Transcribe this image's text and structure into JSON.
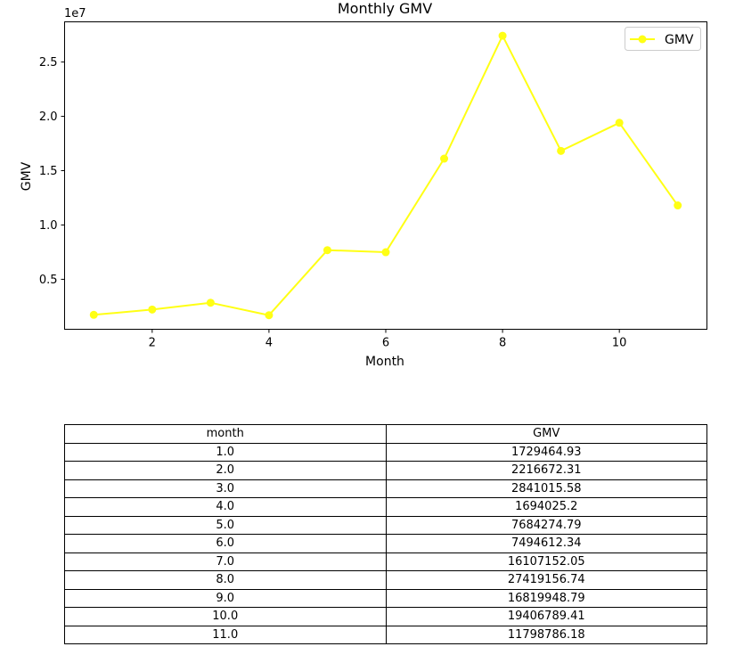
{
  "chart_data": {
    "type": "line",
    "title": "Monthly GMV",
    "xlabel": "Month",
    "ylabel": "GMV",
    "offset_label": "1e7",
    "x": [
      1,
      2,
      3,
      4,
      5,
      6,
      7,
      8,
      9,
      10,
      11
    ],
    "series": [
      {
        "name": "GMV",
        "color": "#ffff14",
        "marker": "circle",
        "values": [
          1729464.93,
          2216672.31,
          2841015.58,
          1694025.2,
          7684274.79,
          7494612.34,
          16107152.05,
          27419156.74,
          16819948.79,
          19406789.41,
          11798786.18
        ]
      }
    ],
    "xlim": [
      0.5,
      11.5
    ],
    "ylim": [
      400000,
      28700000
    ],
    "xticks": [
      2,
      4,
      6,
      8,
      10
    ],
    "xtick_labels": [
      "2",
      "4",
      "6",
      "8",
      "10"
    ],
    "yticks": [
      5000000,
      10000000,
      15000000,
      20000000,
      25000000
    ],
    "ytick_labels": [
      "0.5",
      "1.0",
      "1.5",
      "2.0",
      "2.5"
    ],
    "grid": false,
    "legend_position": "upper right"
  },
  "table": {
    "headers": [
      "month",
      "GMV"
    ],
    "rows": [
      [
        "1.0",
        "1729464.93"
      ],
      [
        "2.0",
        "2216672.31"
      ],
      [
        "3.0",
        "2841015.58"
      ],
      [
        "4.0",
        "1694025.2"
      ],
      [
        "5.0",
        "7684274.79"
      ],
      [
        "6.0",
        "7494612.34"
      ],
      [
        "7.0",
        "16107152.05"
      ],
      [
        "8.0",
        "27419156.74"
      ],
      [
        "9.0",
        "16819948.79"
      ],
      [
        "10.0",
        "19406789.41"
      ],
      [
        "11.0",
        "11798786.18"
      ]
    ]
  }
}
